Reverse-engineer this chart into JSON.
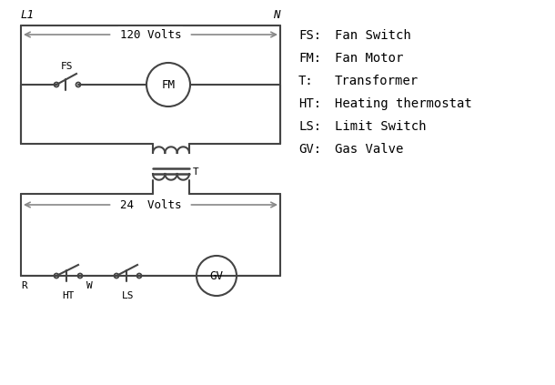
{
  "background_color": "#ffffff",
  "line_color": "#444444",
  "arrow_color": "#888888",
  "text_color": "#000000",
  "legend_items": [
    [
      "FS:",
      "Fan Switch"
    ],
    [
      "FM:",
      "Fan Motor"
    ],
    [
      "T:",
      "Transformer"
    ],
    [
      "HT:",
      "Heating thermostat"
    ],
    [
      "LS:",
      "Limit Switch"
    ],
    [
      "GV:",
      "Gas Valve"
    ]
  ],
  "voltage_120": "120 Volts",
  "voltage_24": "24  Volts",
  "label_L1": "L1",
  "label_N": "N",
  "label_T": "T",
  "label_FS": "FS",
  "label_FM": "FM",
  "label_GV": "GV",
  "label_R": "R",
  "label_W": "W",
  "label_HT": "HT",
  "label_LS": "LS"
}
